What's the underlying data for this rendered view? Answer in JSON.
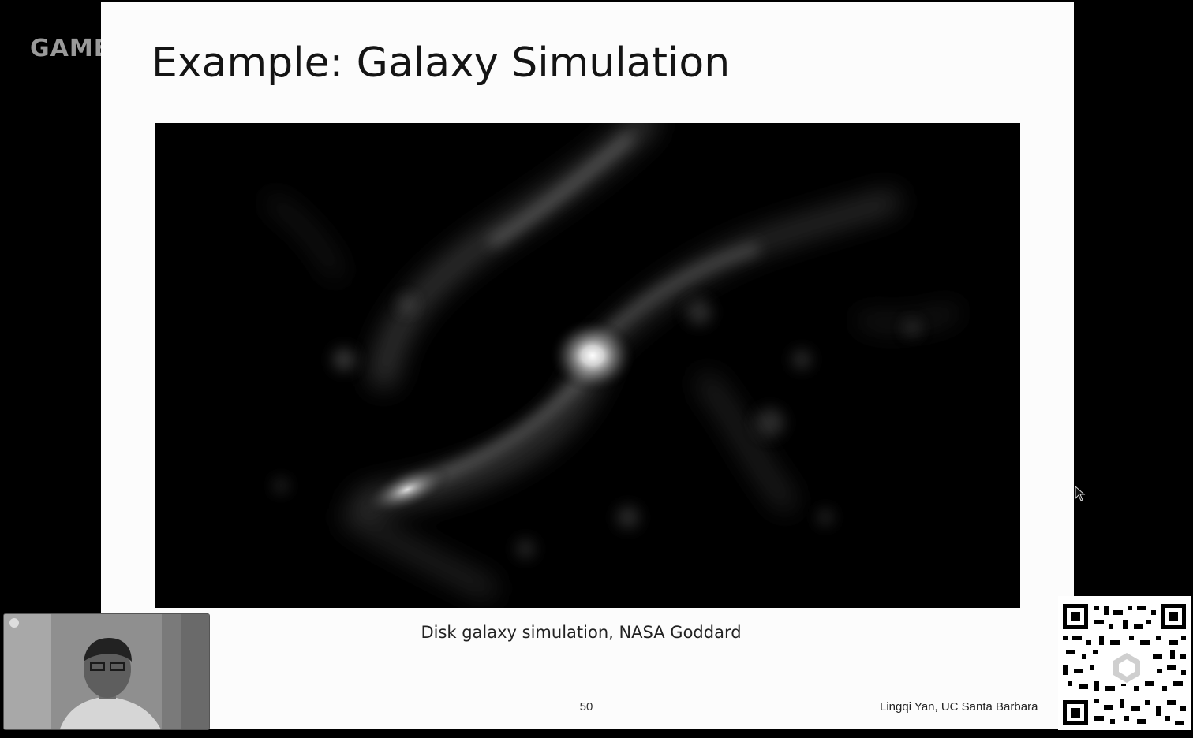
{
  "brand": {
    "text": "GAME"
  },
  "slide": {
    "title": "Example: Galaxy Simulation",
    "image_description_icon": "galaxy-simulation-image",
    "caption": "Disk galaxy simulation, NASA Goddard",
    "page_number": "50",
    "author": "Lingqi Yan, UC Santa Barbara"
  },
  "overlays": {
    "webcam_icon": "presenter-webcam",
    "qr_icon": "qr-code"
  }
}
